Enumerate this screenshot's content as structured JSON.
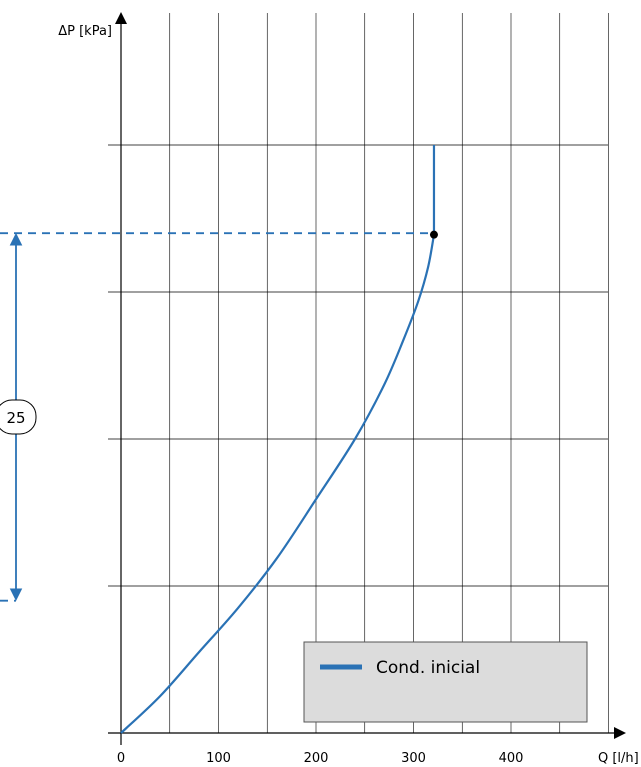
{
  "chart_data": {
    "type": "line",
    "xlabel": "Q [l/h]",
    "ylabel": "ΔP [kPa]",
    "x_ticks": [
      0,
      100,
      200,
      300,
      400
    ],
    "xlim": [
      0,
      500
    ],
    "ylim": [
      0,
      40
    ],
    "grid": true,
    "legend_position": "bottom-right",
    "series": [
      {
        "name": "Cond. inicial",
        "color": "#2a72b5",
        "points": [
          [
            0,
            0
          ],
          [
            40,
            2.5
          ],
          [
            80,
            5.5
          ],
          [
            120,
            8.5
          ],
          [
            160,
            11.9
          ],
          [
            200,
            15.9
          ],
          [
            240,
            20.0
          ],
          [
            270,
            23.7
          ],
          [
            290,
            26.8
          ],
          [
            305,
            29.4
          ],
          [
            315,
            31.7
          ],
          [
            321,
            33.9
          ],
          [
            321,
            40.0
          ]
        ]
      }
    ],
    "operating_point": {
      "x": 321,
      "y": 33.9
    },
    "dimension": {
      "label": "25",
      "from": 9,
      "to": 34
    },
    "colors": {
      "curve": "#2a72b5",
      "legend_bg": "#dcdcdc",
      "grid": "#000000"
    }
  }
}
